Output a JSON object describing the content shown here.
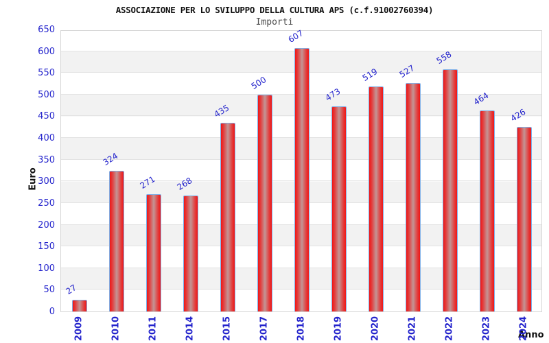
{
  "chart_data": {
    "type": "bar",
    "title": "ASSOCIAZIONE PER LO SVILUPPO DELLA CULTURA APS (c.f.91002760394)",
    "subtitle": "Importi",
    "xlabel": "Anno",
    "ylabel": "Euro",
    "categories": [
      "2009",
      "2010",
      "2011",
      "2014",
      "2015",
      "2017",
      "2018",
      "2019",
      "2020",
      "2021",
      "2022",
      "2023",
      "2024"
    ],
    "values": [
      27,
      324,
      271,
      268,
      435,
      500,
      607,
      473,
      519,
      527,
      558,
      464,
      426
    ],
    "ylim": [
      0,
      650
    ],
    "ytick_step": 50,
    "grid": "horizontal alternating bands every 50 units, light gridlines",
    "legend": "none",
    "colors": {
      "bar_fill_edge": "#ef1616",
      "bar_fill_center": "#c39595",
      "bar_border": "#7fb0e8",
      "label_blue": "#2323cc",
      "band_gray": "#f2f2f2",
      "plot_border": "#d6d6d6",
      "subtitle_gray": "#4d4d4d"
    }
  }
}
